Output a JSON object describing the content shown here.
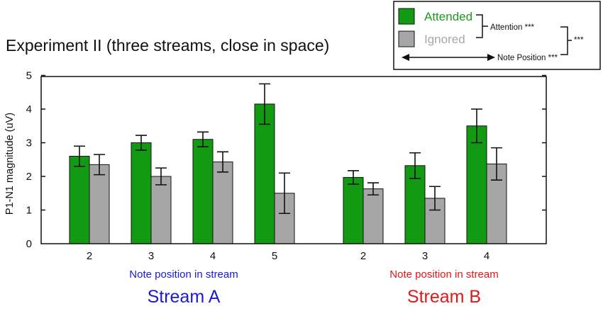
{
  "title": "Experiment II (three streams, close in space)",
  "legend": {
    "attended_label": "Attended",
    "ignored_label": "Ignored",
    "attention_stat": "Attention ***",
    "note_position_stat": "Note Position ***",
    "interaction_stat": "***"
  },
  "colors": {
    "attended": "#129a12",
    "ignored": "#a6a6a6",
    "attended_text": "#1e9a1e",
    "ignored_text": "#a8a8a8",
    "stream_a": "#1a1ad6",
    "stream_b": "#e01818"
  },
  "chart_data": {
    "type": "bar",
    "ylabel": "P1-N1 magnitude (uV)",
    "ylim": [
      0,
      5.5
    ],
    "yticks": [
      "0",
      "1",
      "2",
      "3",
      "4",
      "5"
    ],
    "series_names": [
      "Attended",
      "Ignored"
    ],
    "groups": [
      {
        "name": "Stream A",
        "xlabel": "Note position in stream",
        "categories": [
          "2",
          "3",
          "4",
          "5"
        ],
        "attended": [
          2.6,
          3.0,
          3.1,
          4.15
        ],
        "attended_err": [
          0.3,
          0.22,
          0.22,
          0.6
        ],
        "ignored": [
          2.35,
          2.0,
          2.43,
          1.5
        ],
        "ignored_err": [
          0.3,
          0.25,
          0.3,
          0.6
        ]
      },
      {
        "name": "Stream B",
        "xlabel": "Note position in stream",
        "categories": [
          "2",
          "3",
          "4"
        ],
        "attended": [
          1.97,
          2.32,
          3.5
        ],
        "attended_err": [
          0.2,
          0.38,
          0.5
        ],
        "ignored": [
          1.63,
          1.35,
          2.37
        ],
        "ignored_err": [
          0.18,
          0.35,
          0.48
        ]
      }
    ]
  }
}
